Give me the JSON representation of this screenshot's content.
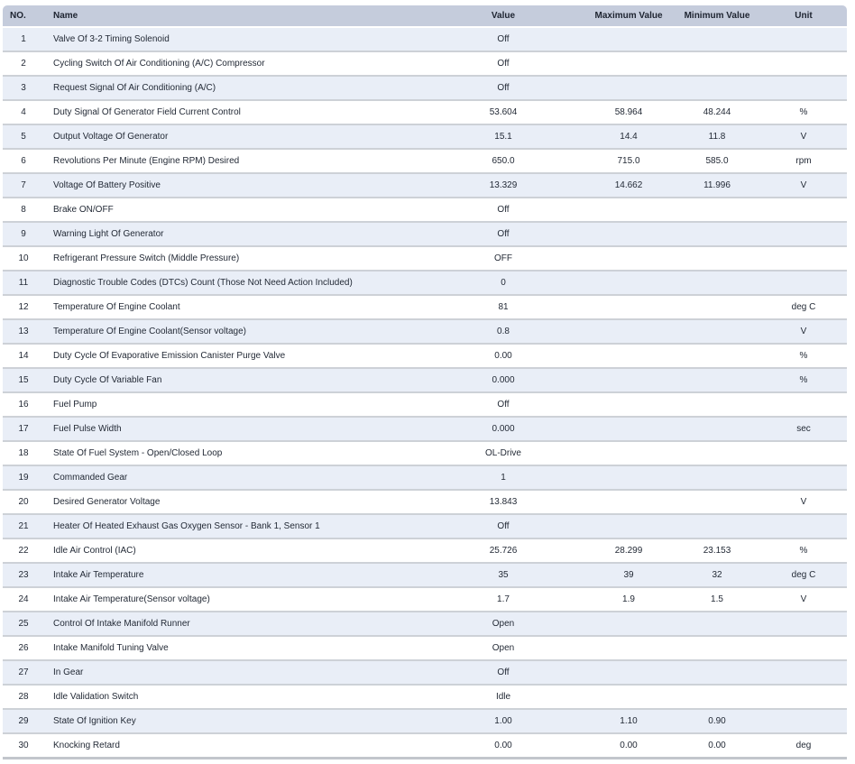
{
  "table": {
    "columns": [
      {
        "key": "no",
        "label": "NO."
      },
      {
        "key": "name",
        "label": "Name"
      },
      {
        "key": "value",
        "label": "Value"
      },
      {
        "key": "max",
        "label": "Maximum Value"
      },
      {
        "key": "min",
        "label": "Minimum Value"
      },
      {
        "key": "unit",
        "label": "Unit"
      }
    ],
    "rows": [
      {
        "no": "1",
        "name": "Valve Of 3-2 Timing Solenoid",
        "value": "Off",
        "max": "",
        "min": "",
        "unit": ""
      },
      {
        "no": "2",
        "name": "Cycling Switch Of Air Conditioning (A/C) Compressor",
        "value": "Off",
        "max": "",
        "min": "",
        "unit": ""
      },
      {
        "no": "3",
        "name": "Request Signal Of Air Conditioning (A/C)",
        "value": "Off",
        "max": "",
        "min": "",
        "unit": ""
      },
      {
        "no": "4",
        "name": "Duty Signal Of Generator Field Current Control",
        "value": "53.604",
        "max": "58.964",
        "min": "48.244",
        "unit": "%"
      },
      {
        "no": "5",
        "name": "Output Voltage Of Generator",
        "value": "15.1",
        "max": "14.4",
        "min": "11.8",
        "unit": "V"
      },
      {
        "no": "6",
        "name": "Revolutions Per Minute (Engine RPM) Desired",
        "value": "650.0",
        "max": "715.0",
        "min": "585.0",
        "unit": "rpm"
      },
      {
        "no": "7",
        "name": "Voltage Of Battery Positive",
        "value": "13.329",
        "max": "14.662",
        "min": "11.996",
        "unit": "V"
      },
      {
        "no": "8",
        "name": "Brake ON/OFF",
        "value": "Off",
        "max": "",
        "min": "",
        "unit": ""
      },
      {
        "no": "9",
        "name": "Warning Light Of Generator",
        "value": "Off",
        "max": "",
        "min": "",
        "unit": ""
      },
      {
        "no": "10",
        "name": "Refrigerant Pressure Switch (Middle Pressure)",
        "value": "OFF",
        "max": "",
        "min": "",
        "unit": ""
      },
      {
        "no": "11",
        "name": "Diagnostic Trouble Codes (DTCs) Count (Those Not Need Action Included)",
        "value": "0",
        "max": "",
        "min": "",
        "unit": ""
      },
      {
        "no": "12",
        "name": "Temperature Of Engine Coolant",
        "value": "81",
        "max": "",
        "min": "",
        "unit": "deg C"
      },
      {
        "no": "13",
        "name": "Temperature Of Engine Coolant(Sensor voltage)",
        "value": "0.8",
        "max": "",
        "min": "",
        "unit": "V"
      },
      {
        "no": "14",
        "name": "Duty Cycle Of Evaporative Emission Canister Purge Valve",
        "value": "0.00",
        "max": "",
        "min": "",
        "unit": "%"
      },
      {
        "no": "15",
        "name": "Duty Cycle Of Variable Fan",
        "value": "0.000",
        "max": "",
        "min": "",
        "unit": "%"
      },
      {
        "no": "16",
        "name": "Fuel Pump",
        "value": "Off",
        "max": "",
        "min": "",
        "unit": ""
      },
      {
        "no": "17",
        "name": "Fuel Pulse Width",
        "value": "0.000",
        "max": "",
        "min": "",
        "unit": "sec"
      },
      {
        "no": "18",
        "name": "State Of Fuel System - Open/Closed Loop",
        "value": "OL-Drive",
        "max": "",
        "min": "",
        "unit": ""
      },
      {
        "no": "19",
        "name": "Commanded Gear",
        "value": "1",
        "max": "",
        "min": "",
        "unit": ""
      },
      {
        "no": "20",
        "name": "Desired Generator Voltage",
        "value": "13.843",
        "max": "",
        "min": "",
        "unit": "V"
      },
      {
        "no": "21",
        "name": "Heater Of Heated Exhaust Gas Oxygen Sensor - Bank 1, Sensor 1",
        "value": "Off",
        "max": "",
        "min": "",
        "unit": ""
      },
      {
        "no": "22",
        "name": "Idle Air Control (IAC)",
        "value": "25.726",
        "max": "28.299",
        "min": "23.153",
        "unit": "%"
      },
      {
        "no": "23",
        "name": "Intake Air Temperature",
        "value": "35",
        "max": "39",
        "min": "32",
        "unit": "deg C"
      },
      {
        "no": "24",
        "name": "Intake Air Temperature(Sensor voltage)",
        "value": "1.7",
        "max": "1.9",
        "min": "1.5",
        "unit": "V"
      },
      {
        "no": "25",
        "name": "Control Of Intake Manifold Runner",
        "value": "Open",
        "max": "",
        "min": "",
        "unit": ""
      },
      {
        "no": "26",
        "name": "Intake Manifold Tuning Valve",
        "value": "Open",
        "max": "",
        "min": "",
        "unit": ""
      },
      {
        "no": "27",
        "name": "In Gear",
        "value": "Off",
        "max": "",
        "min": "",
        "unit": ""
      },
      {
        "no": "28",
        "name": "Idle Validation Switch",
        "value": "Idle",
        "max": "",
        "min": "",
        "unit": ""
      },
      {
        "no": "29",
        "name": "State Of Ignition Key",
        "value": "1.00",
        "max": "1.10",
        "min": "0.90",
        "unit": ""
      },
      {
        "no": "30",
        "name": "Knocking Retard",
        "value": "0.00",
        "max": "0.00",
        "min": "0.00",
        "unit": "deg"
      }
    ]
  },
  "colors": {
    "header_bg": "#c5ccdc",
    "row_alt_bg": "#e9eef7",
    "row_bg": "#ffffff",
    "separator": "#cdd1d7",
    "text": "#232a36"
  }
}
